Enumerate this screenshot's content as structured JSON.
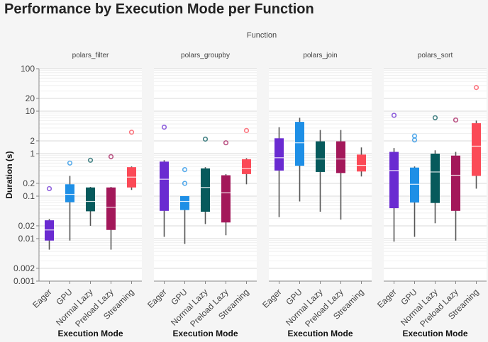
{
  "title": "Performance by Execution Mode per Function",
  "chart_data": {
    "type": "boxplot",
    "facet_header": "Function",
    "xlabel": "Execution Mode",
    "ylabel": "Duration (s)",
    "y_scale": "log",
    "ylim": [
      0.001,
      100
    ],
    "y_ticks": [
      "0.001",
      "0.002",
      "0.01",
      "0.02",
      "0.1",
      "0.2",
      "1",
      "2",
      "10",
      "20",
      "100"
    ],
    "categories": [
      "Eager",
      "GPU",
      "Normal Lazy",
      "Preload Lazy",
      "Streaming"
    ],
    "colors": {
      "Eager": "#6a2bd1",
      "GPU": "#1e8fe6",
      "Normal Lazy": "#075a5c",
      "Preload Lazy": "#a3185a",
      "Streaming": "#fb4a57"
    },
    "facets": [
      {
        "name": "polars_filter",
        "boxes": [
          {
            "mode": "Eager",
            "whisker_low": 0.0055,
            "q1": 0.009,
            "median": 0.016,
            "q3": 0.027,
            "whisker_high": 0.029,
            "outliers": [
              0.15
            ]
          },
          {
            "mode": "GPU",
            "whisker_low": 0.009,
            "q1": 0.072,
            "median": 0.11,
            "q3": 0.19,
            "whisker_high": 0.3,
            "outliers": [
              0.6
            ]
          },
          {
            "mode": "Normal Lazy",
            "whisker_low": 0.02,
            "q1": 0.044,
            "median": 0.075,
            "q3": 0.16,
            "whisker_high": 0.165,
            "outliers": [
              0.7
            ]
          },
          {
            "mode": "Preload Lazy",
            "whisker_low": 0.0055,
            "q1": 0.016,
            "median": 0.055,
            "q3": 0.16,
            "whisker_high": 0.165,
            "outliers": [
              0.85
            ]
          },
          {
            "mode": "Streaming",
            "whisker_low": 0.14,
            "q1": 0.16,
            "median": 0.28,
            "q3": 0.48,
            "whisker_high": 0.5,
            "outliers": [
              3.2
            ]
          }
        ]
      },
      {
        "name": "polars_groupby",
        "boxes": [
          {
            "mode": "Eager",
            "whisker_low": 0.011,
            "q1": 0.045,
            "median": 0.25,
            "q3": 0.65,
            "whisker_high": 0.7,
            "outliers": [
              4.2
            ]
          },
          {
            "mode": "GPU",
            "whisker_low": 0.0075,
            "q1": 0.047,
            "median": 0.075,
            "q3": 0.1,
            "whisker_high": 0.1,
            "outliers": [
              0.2,
              0.42
            ]
          },
          {
            "mode": "Normal Lazy",
            "whisker_low": 0.022,
            "q1": 0.043,
            "median": 0.16,
            "q3": 0.45,
            "whisker_high": 0.48,
            "outliers": [
              2.2
            ]
          },
          {
            "mode": "Preload Lazy",
            "whisker_low": 0.012,
            "q1": 0.024,
            "median": 0.12,
            "q3": 0.31,
            "whisker_high": 0.33,
            "outliers": [
              1.8
            ]
          },
          {
            "mode": "Streaming",
            "whisker_low": 0.19,
            "q1": 0.33,
            "median": 0.45,
            "q3": 0.74,
            "whisker_high": 0.78,
            "outliers": [
              3.5
            ]
          }
        ]
      },
      {
        "name": "polars_join",
        "boxes": [
          {
            "mode": "Eager",
            "whisker_low": 0.032,
            "q1": 0.4,
            "median": 0.8,
            "q3": 2.3,
            "whisker_high": 4.2,
            "outliers": []
          },
          {
            "mode": "GPU",
            "whisker_low": 0.075,
            "q1": 0.52,
            "median": 1.8,
            "q3": 5.6,
            "whisker_high": 7.0,
            "outliers": []
          },
          {
            "mode": "Normal Lazy",
            "whisker_low": 0.043,
            "q1": 0.37,
            "median": 0.75,
            "q3": 1.95,
            "whisker_high": 3.6,
            "outliers": []
          },
          {
            "mode": "Preload Lazy",
            "whisker_low": 0.028,
            "q1": 0.35,
            "median": 0.75,
            "q3": 1.95,
            "whisker_high": 3.6,
            "outliers": []
          },
          {
            "mode": "Streaming",
            "whisker_low": 0.29,
            "q1": 0.38,
            "median": 0.53,
            "q3": 0.95,
            "whisker_high": 1.4,
            "outliers": []
          }
        ]
      },
      {
        "name": "polars_sort",
        "boxes": [
          {
            "mode": "Eager",
            "whisker_low": 0.0085,
            "q1": 0.052,
            "median": 0.4,
            "q3": 1.1,
            "whisker_high": 1.35,
            "outliers": [
              8.0
            ]
          },
          {
            "mode": "GPU",
            "whisker_low": 0.011,
            "q1": 0.071,
            "median": 0.19,
            "q3": 0.47,
            "whisker_high": 0.5,
            "outliers": [
              2.1,
              2.6
            ]
          },
          {
            "mode": "Normal Lazy",
            "whisker_low": 0.023,
            "q1": 0.069,
            "median": 0.37,
            "q3": 1.0,
            "whisker_high": 1.2,
            "outliers": [
              7.0
            ]
          },
          {
            "mode": "Preload Lazy",
            "whisker_low": 0.009,
            "q1": 0.045,
            "median": 0.31,
            "q3": 0.9,
            "whisker_high": 1.1,
            "outliers": [
              6.2
            ]
          },
          {
            "mode": "Streaming",
            "whisker_low": 0.15,
            "q1": 0.3,
            "median": 1.5,
            "q3": 5.2,
            "whisker_high": 6.0,
            "outliers": [
              36
            ]
          }
        ]
      }
    ]
  }
}
